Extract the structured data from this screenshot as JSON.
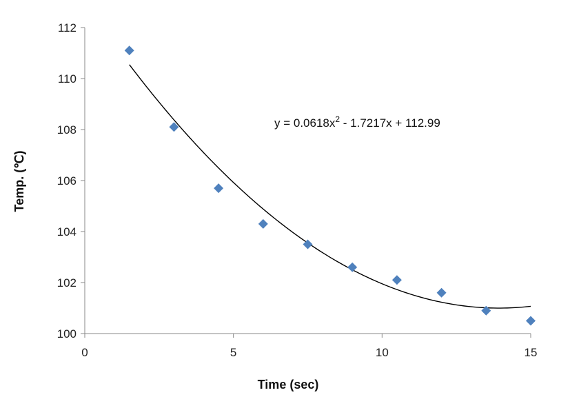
{
  "chart_data": {
    "type": "scatter",
    "xlabel": "Time (sec)",
    "ylabel": "Temp. (℃)",
    "xlim": [
      0,
      15
    ],
    "ylim": [
      100,
      112
    ],
    "xticks": [
      "0",
      "5",
      "10",
      "15"
    ],
    "yticks": [
      "100",
      "102",
      "104",
      "106",
      "108",
      "110",
      "112"
    ],
    "grid": false,
    "series": [
      {
        "x": [
          1.5,
          3.0,
          4.5,
          6.0,
          7.5,
          9.0,
          10.5,
          12.0,
          13.5,
          15.0
        ],
        "y": [
          111.1,
          108.1,
          105.7,
          104.3,
          103.5,
          102.6,
          102.1,
          101.6,
          100.9,
          100.5
        ],
        "marker": "diamond",
        "color": "#4f81bd"
      }
    ],
    "trendline": {
      "type": "polynomial",
      "equation_base": "y = 0.0618x",
      "equation_exponent": "2",
      "equation_rest": " - 1.7217x + 112.99",
      "coefficients": [
        0.0618,
        -1.7217,
        112.99
      ],
      "x_range": [
        1.5,
        15
      ],
      "color": "#000000"
    }
  }
}
